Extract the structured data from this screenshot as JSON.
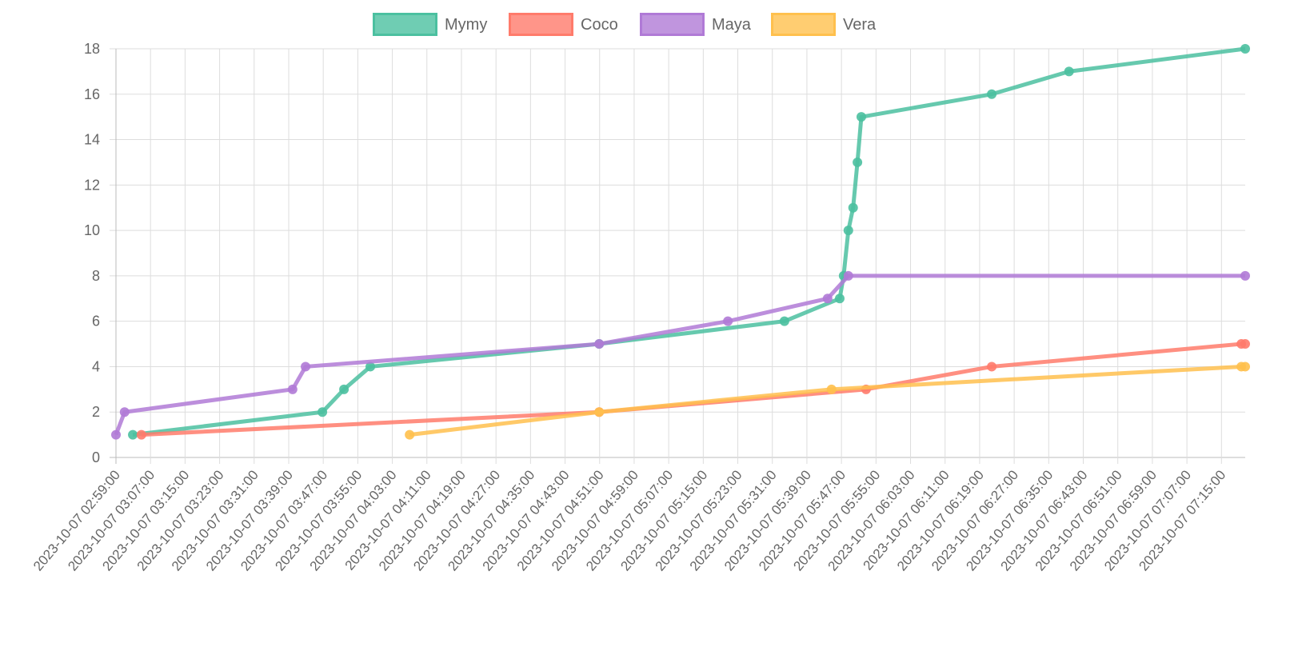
{
  "chart_data": {
    "type": "line",
    "title": "",
    "xlabel": "",
    "ylabel": "",
    "date": "2023-10-07",
    "xlim": [
      "02:59:00",
      "07:20:30"
    ],
    "ylim": [
      0,
      18
    ],
    "y_ticks": [
      0,
      2,
      4,
      6,
      8,
      10,
      12,
      14,
      16,
      18
    ],
    "x_ticks": [
      "2023-10-07 02:59:00",
      "2023-10-07 03:07:00",
      "2023-10-07 03:15:00",
      "2023-10-07 03:23:00",
      "2023-10-07 03:31:00",
      "2023-10-07 03:39:00",
      "2023-10-07 03:47:00",
      "2023-10-07 03:55:00",
      "2023-10-07 04:03:00",
      "2023-10-07 04:11:00",
      "2023-10-07 04:19:00",
      "2023-10-07 04:27:00",
      "2023-10-07 04:35:00",
      "2023-10-07 04:43:00",
      "2023-10-07 04:51:00",
      "2023-10-07 04:59:00",
      "2023-10-07 05:07:00",
      "2023-10-07 05:15:00",
      "2023-10-07 05:23:00",
      "2023-10-07 05:31:00",
      "2023-10-07 05:39:00",
      "2023-10-07 05:47:00",
      "2023-10-07 05:55:00",
      "2023-10-07 06:03:00",
      "2023-10-07 06:11:00",
      "2023-10-07 06:19:00",
      "2023-10-07 06:27:00",
      "2023-10-07 06:35:00",
      "2023-10-07 06:43:00",
      "2023-10-07 06:51:00",
      "2023-10-07 06:59:00",
      "2023-10-07 07:07:00",
      "2023-10-07 07:15:00"
    ],
    "grid": true,
    "legend": "top-center",
    "series": [
      {
        "name": "Mymy",
        "color": "#4bc0a0",
        "points": [
          [
            "03:02:54",
            1
          ],
          [
            "03:46:48",
            2
          ],
          [
            "03:51:48",
            3
          ],
          [
            "03:57:54",
            4
          ],
          [
            "04:50:54",
            5
          ],
          [
            "05:33:48",
            6
          ],
          [
            "05:46:36",
            7
          ],
          [
            "05:47:30",
            8
          ],
          [
            "05:48:36",
            10
          ],
          [
            "05:49:42",
            11
          ],
          [
            "05:50:42",
            13
          ],
          [
            "05:51:36",
            15
          ],
          [
            "06:21:48",
            16
          ],
          [
            "06:39:42",
            17
          ],
          [
            "07:20:30",
            18
          ]
        ]
      },
      {
        "name": "Coco",
        "color": "#ff7b6b",
        "points": [
          [
            "03:04:54",
            1
          ],
          [
            "04:50:54",
            2
          ],
          [
            "05:52:42",
            3
          ],
          [
            "06:21:48",
            4
          ],
          [
            "07:19:36",
            5
          ],
          [
            "07:20:30",
            5
          ]
        ]
      },
      {
        "name": "Maya",
        "color": "#b07ad6",
        "points": [
          [
            "02:59:00",
            1
          ],
          [
            "03:01:00",
            2
          ],
          [
            "03:39:54",
            3
          ],
          [
            "03:42:54",
            4
          ],
          [
            "04:50:54",
            5
          ],
          [
            "05:20:42",
            6
          ],
          [
            "05:43:48",
            7
          ],
          [
            "05:48:36",
            8
          ],
          [
            "07:20:30",
            8
          ]
        ]
      },
      {
        "name": "Vera",
        "color": "#ffc04d",
        "points": [
          [
            "04:07:00",
            1
          ],
          [
            "04:50:54",
            2
          ],
          [
            "05:44:42",
            3
          ],
          [
            "07:19:36",
            4
          ],
          [
            "07:20:30",
            4
          ]
        ]
      }
    ]
  }
}
